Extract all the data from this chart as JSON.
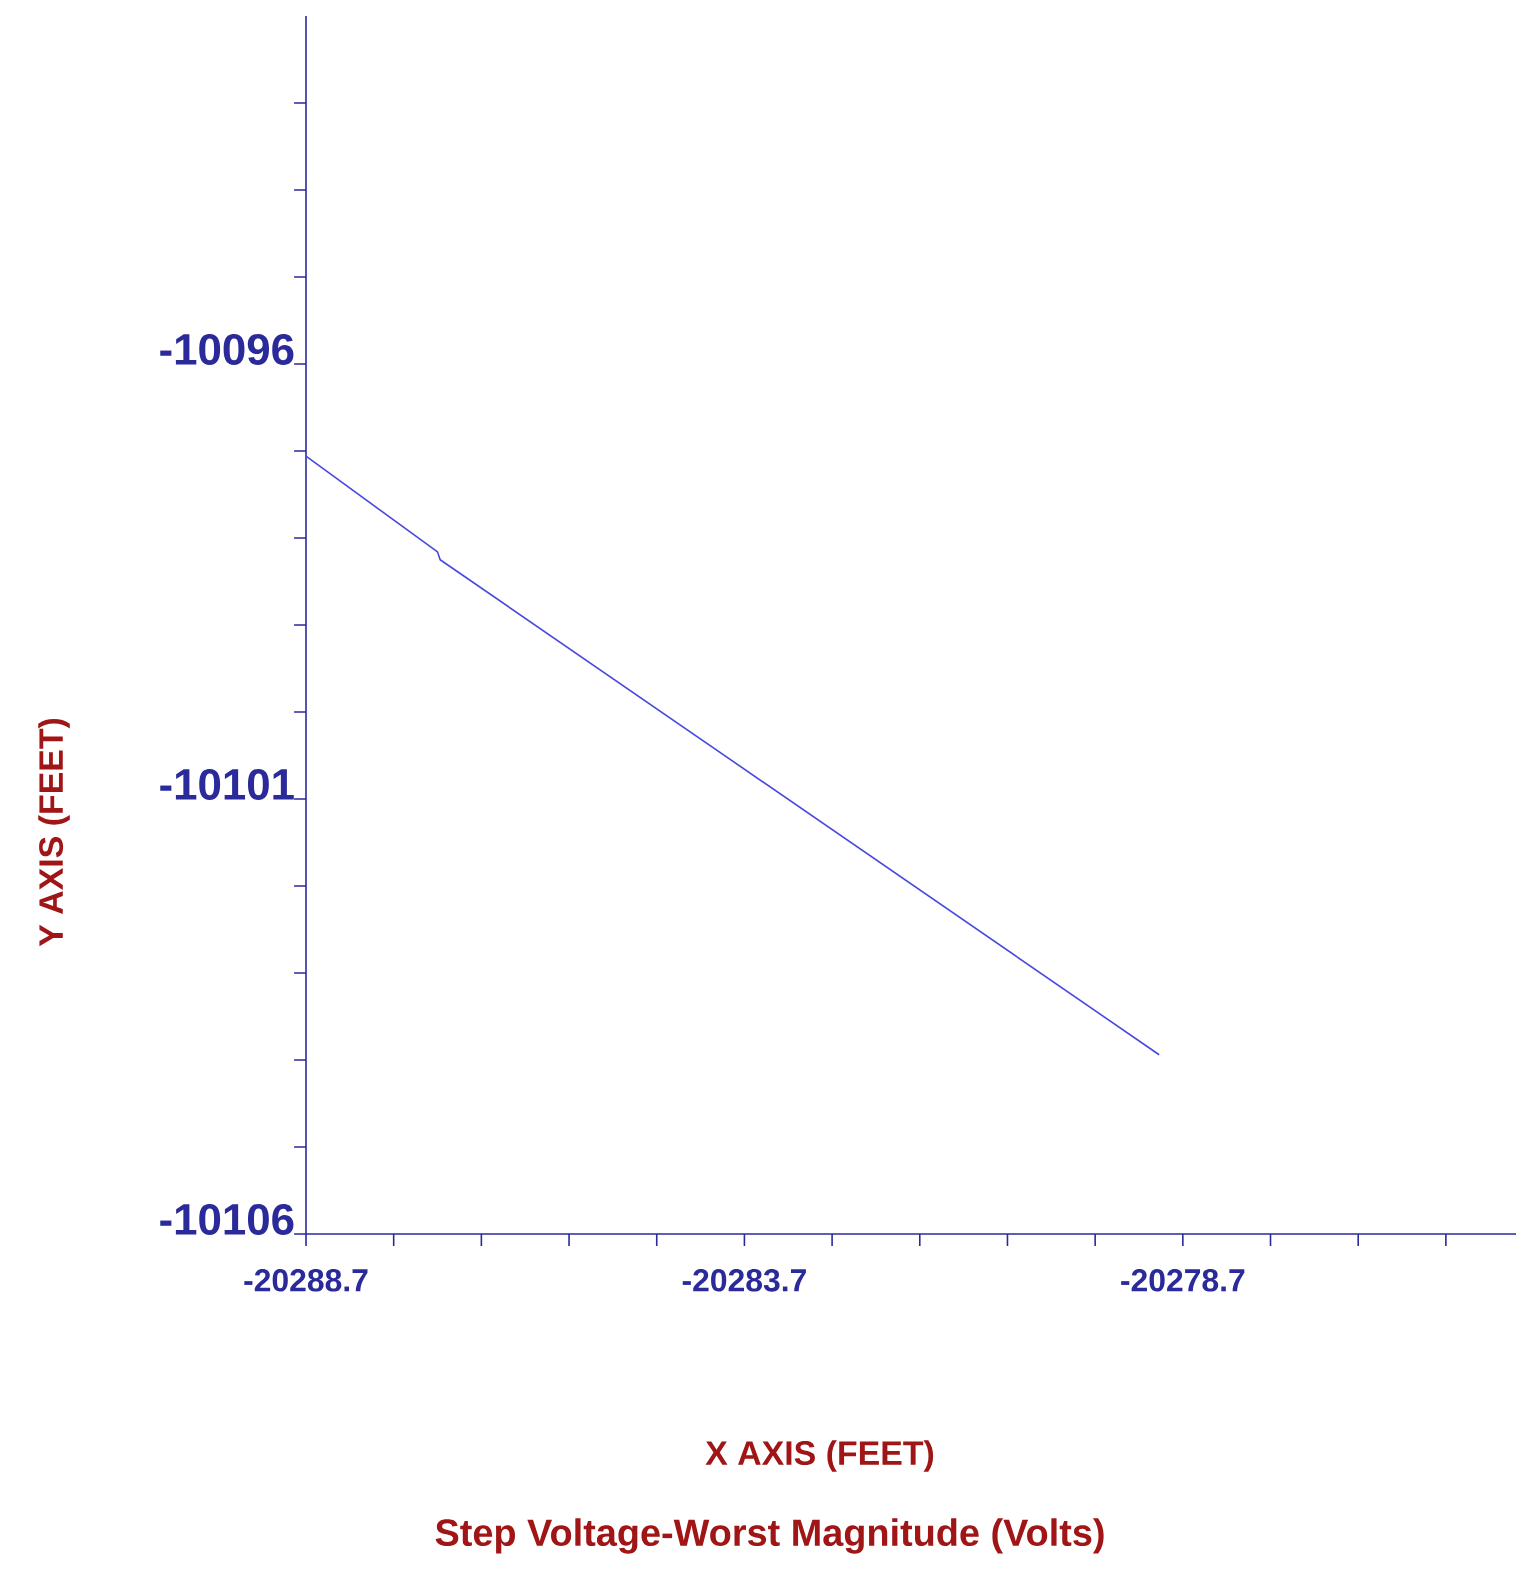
{
  "chart_data": {
    "type": "line",
    "title": "Step Voltage-Worst Magnitude (Volts)",
    "xlabel": "X AXIS   (FEET)",
    "ylabel": "Y AXIS   (FEET)",
    "series": [
      {
        "color": "#4848e0",
        "x": [
          -20288.7,
          -20287.2,
          -20287.17,
          -20278.97
        ],
        "values": [
          -10097.06,
          -10098.16,
          -10098.25,
          -10103.94
        ]
      }
    ],
    "xlim": [
      -20288.7,
      -20274.9
    ],
    "ylim": [
      -10106,
      -10092
    ],
    "xticks": [
      -20288.7,
      {
        "value": -20287.7,
        "label": null
      },
      {
        "value": -20286.7,
        "label": null
      },
      {
        "value": -20285.7,
        "label": null
      },
      {
        "value": -20284.7,
        "label": null
      },
      -20283.7,
      {
        "value": -20282.7,
        "label": null
      },
      {
        "value": -20281.7,
        "label": null
      },
      {
        "value": -20280.7,
        "label": null
      },
      {
        "value": -20279.7,
        "label": null
      },
      -20278.7,
      {
        "value": -20277.7,
        "label": null
      },
      {
        "value": -20276.7,
        "label": null
      },
      {
        "value": -20275.7,
        "label": null
      }
    ],
    "yticks": [
      -10106,
      {
        "value": -10105,
        "label": null
      },
      {
        "value": -10104,
        "label": null
      },
      {
        "value": -10103,
        "label": null
      },
      {
        "value": -10102,
        "label": null
      },
      -10101,
      {
        "value": -10100,
        "label": null
      },
      {
        "value": -10099,
        "label": null
      },
      {
        "value": -10098,
        "label": null
      },
      {
        "value": -10097,
        "label": null
      },
      -10096,
      {
        "value": -10095,
        "label": null
      },
      {
        "value": -10094,
        "label": null
      },
      {
        "value": -10093,
        "label": null
      }
    ],
    "grid": false,
    "marker": "none",
    "line_style": "solid"
  }
}
